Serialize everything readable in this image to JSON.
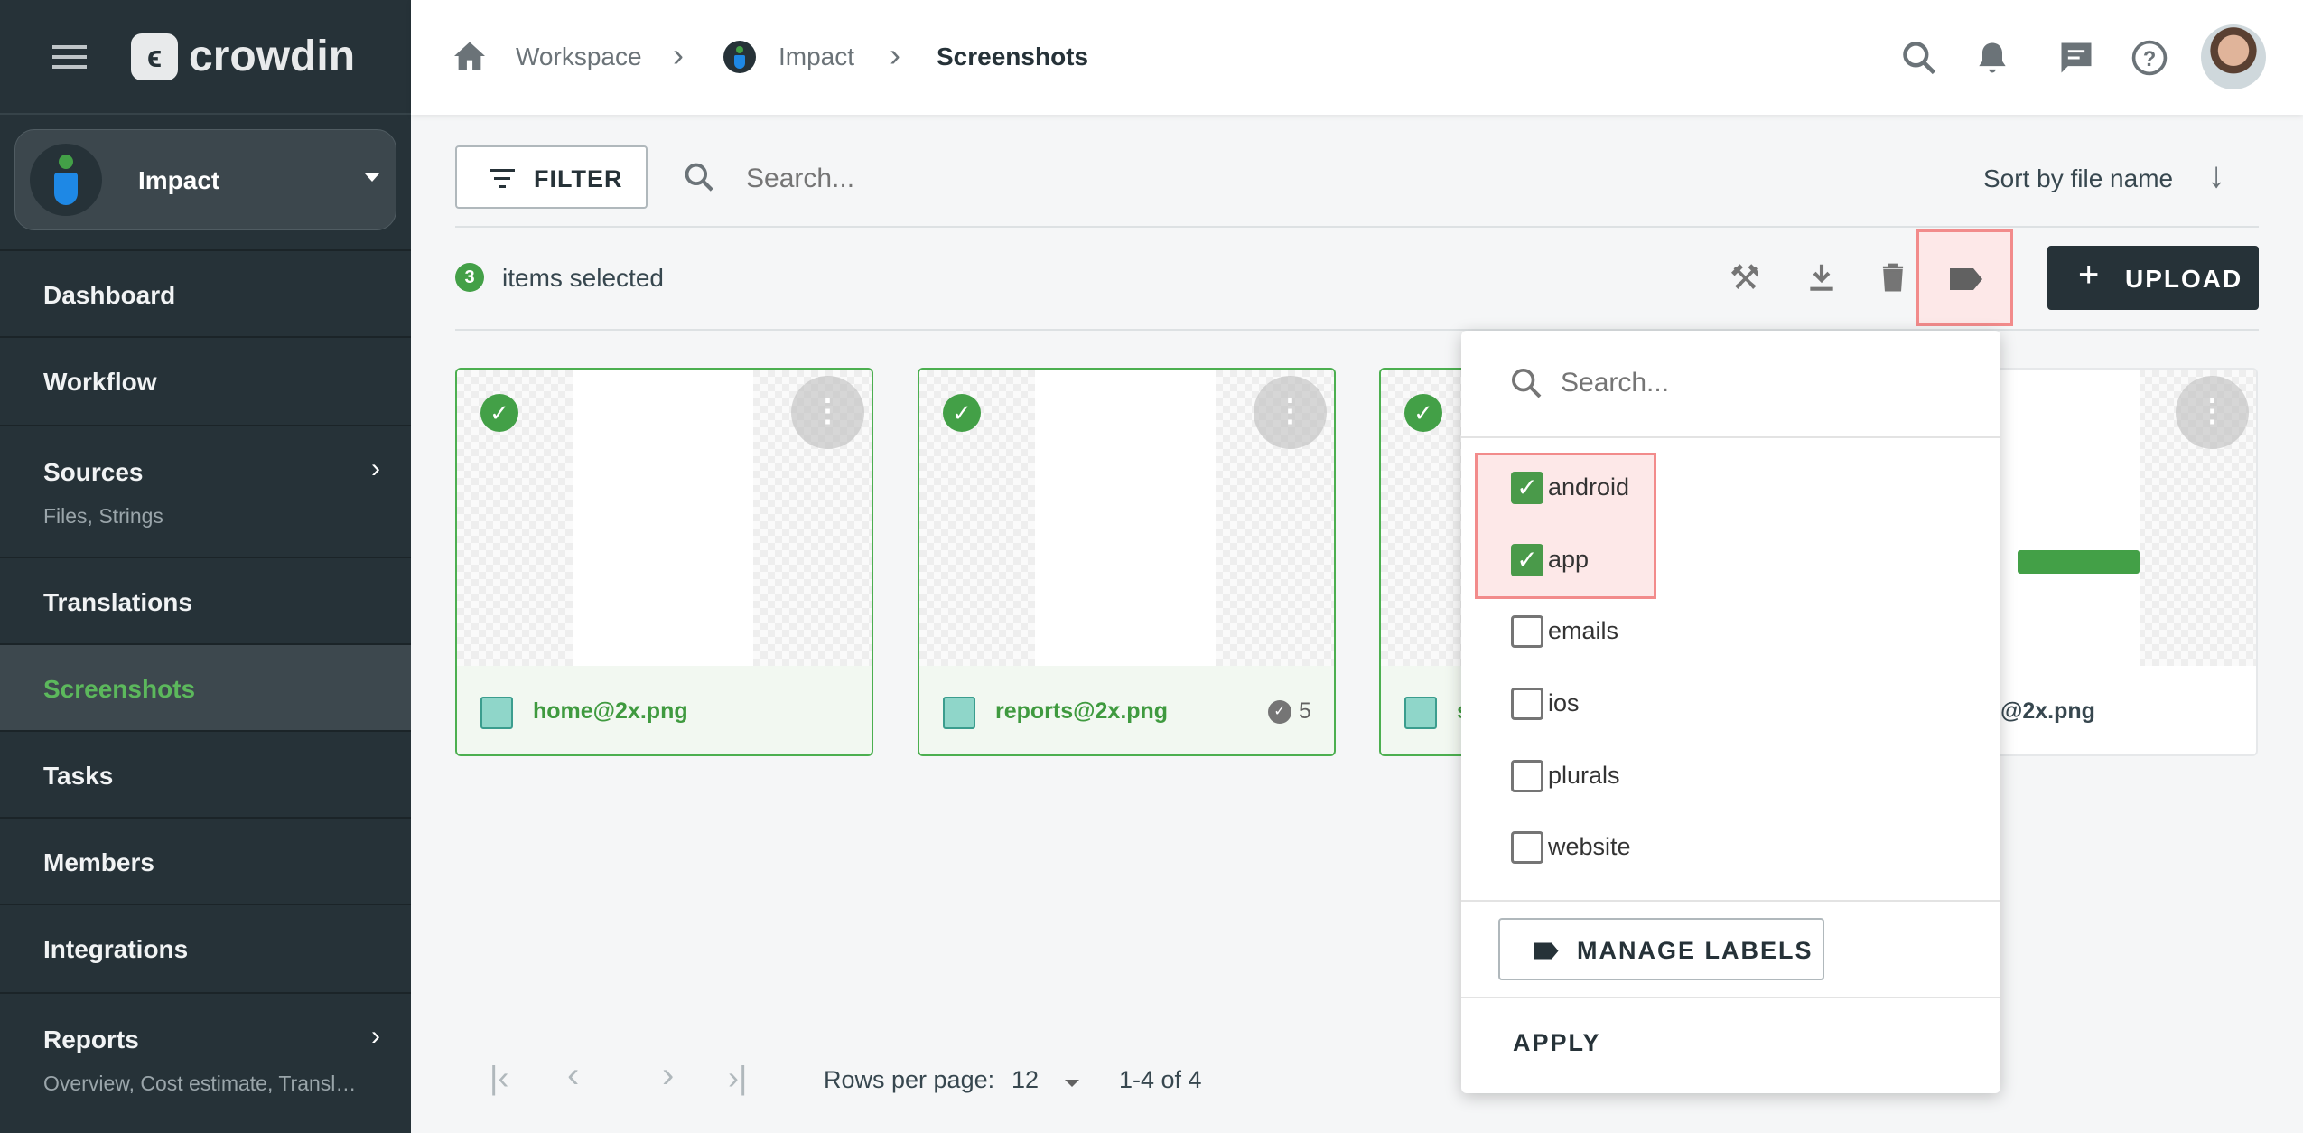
{
  "app": {
    "logo_text": "crowdin",
    "project": "Impact"
  },
  "sidebar": {
    "items": [
      {
        "label": "Dashboard"
      },
      {
        "label": "Workflow"
      },
      {
        "label": "Sources",
        "sub": "Files, Strings"
      },
      {
        "label": "Translations"
      },
      {
        "label": "Screenshots",
        "active": true
      },
      {
        "label": "Tasks"
      },
      {
        "label": "Members"
      },
      {
        "label": "Integrations"
      },
      {
        "label": "Reports",
        "sub": "Overview, Cost estimate, Transl…"
      }
    ]
  },
  "breadcrumb": [
    "Workspace",
    "Impact",
    "Screenshots"
  ],
  "toolbar": {
    "filter_label": "FILTER",
    "search_placeholder": "Search...",
    "sort_label": "Sort by file name",
    "selected_count": "3",
    "selected_text": "items selected",
    "upload_label": "UPLOAD"
  },
  "cards": [
    {
      "name": "home@2x.png",
      "selected": true,
      "count": ""
    },
    {
      "name": "reports@2x.png",
      "selected": true,
      "count": "5"
    },
    {
      "name": "s",
      "selected": true,
      "count": ""
    },
    {
      "name": "@2x.png",
      "selected": false,
      "count": ""
    }
  ],
  "labels_dropdown": {
    "search_placeholder": "Search...",
    "options": [
      {
        "label": "android",
        "checked": true
      },
      {
        "label": "app",
        "checked": true
      },
      {
        "label": "emails",
        "checked": false
      },
      {
        "label": "ios",
        "checked": false
      },
      {
        "label": "plurals",
        "checked": false
      },
      {
        "label": "website",
        "checked": false
      }
    ],
    "manage_label": "MANAGE LABELS",
    "apply_label": "APPLY"
  },
  "pagination": {
    "rows_label": "Rows per page:",
    "rows_value": "12",
    "range": "1-4 of 4"
  },
  "colors": {
    "sidebar": "#263238",
    "accent": "#4caf50",
    "highlight": "#f28b8b"
  }
}
